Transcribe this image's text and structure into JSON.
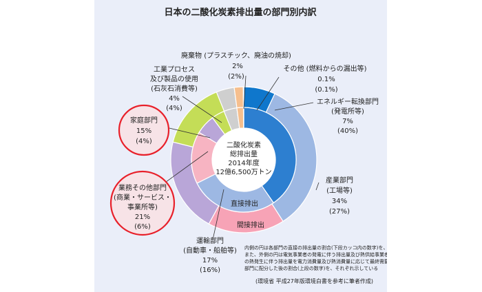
{
  "chart_data": {
    "type": "pie",
    "title": "日本の二酸化炭素排出量の部門別内訳",
    "center": {
      "line1": "二酸化炭素",
      "line2": "総排出量",
      "line3": "2014年度",
      "line4": "12億6,500万トン"
    },
    "rings": {
      "inner": {
        "label": "直接排出"
      },
      "outer": {
        "label": "間接排出"
      }
    },
    "sectors": [
      {
        "key": "energy",
        "label1": "エネルギー転換部門",
        "label2": "(発電所等)",
        "outer_value": 7,
        "inner_value": 40,
        "outer_text": "7%",
        "inner_text": "(40%)",
        "color_outer": "#0f77cc",
        "color_inner": "#2d7fd0"
      },
      {
        "key": "industry",
        "label1": "産業部門",
        "label2": "(工場等)",
        "outer_value": 34,
        "inner_value": 27,
        "outer_text": "34%",
        "inner_text": "(27%)",
        "color_outer": "#9db8e3",
        "color_inner": "#9db8e3"
      },
      {
        "key": "transport",
        "label1": "運輸部門",
        "label2": "(自動車・船舶等)",
        "outer_value": 17,
        "inner_value": 16,
        "outer_text": "17%",
        "inner_text": "(16%)",
        "color_outer": "#f7a3b6",
        "color_inner": "#f7b4c2"
      },
      {
        "key": "business",
        "label1": "業務その他部門",
        "label2": "(商業・サービス・",
        "label3": "事業所等)",
        "outer_value": 21,
        "inner_value": 6,
        "outer_text": "21%",
        "inner_text": "(6%)",
        "color_outer": "#b9a6d8",
        "color_inner": "#b9a6d8"
      },
      {
        "key": "household",
        "label1": "家庭部門",
        "outer_value": 15,
        "inner_value": 4,
        "outer_text": "15%",
        "inner_text": "(4%)",
        "color_outer": "#c4dd57",
        "color_inner": "#c4dd57"
      },
      {
        "key": "process",
        "label1": "工業プロセス",
        "label2": "及び製品の使用",
        "label3": "(石灰石消費等)",
        "outer_value": 4,
        "inner_value": 4,
        "outer_text": "4%",
        "inner_text": "(4%)",
        "color_outer": "#cfcfcf",
        "color_inner": "#cfcfcf"
      },
      {
        "key": "waste",
        "label1": "廃棄物 (プラスチック、廃油の焼却)",
        "outer_value": 2,
        "inner_value": 2,
        "outer_text": "2%",
        "inner_text": "(2%)",
        "color_outer": "#f6bf8e",
        "color_inner": "#f6bf8e"
      },
      {
        "key": "other",
        "label1": "その他 (燃料からの漏出等)",
        "outer_value": 0.1,
        "inner_value": 0.1,
        "outer_text": "0.1%",
        "inner_text": "(0.1%)",
        "color_outer": "#8b96a8",
        "color_inner": "#8b96a8"
      }
    ],
    "note": {
      "line1": "内側の円は各部門の直接の排出量の割合(下段カッコ内の数字)を、",
      "line2": "また、外側の円は電気事業者の発電に伴う排出量及び熱供給事業者",
      "line3": "の熱発生に伴う排出量を電力消費量及び熱消費量に応じて最終需要",
      "line4": "部門に配分した後の割合(上段の数字)を、それぞれ示している"
    },
    "source": "(環境省 平成27年版環境白書を参考に筆者作成)"
  },
  "highlight_color": "#e8202a"
}
